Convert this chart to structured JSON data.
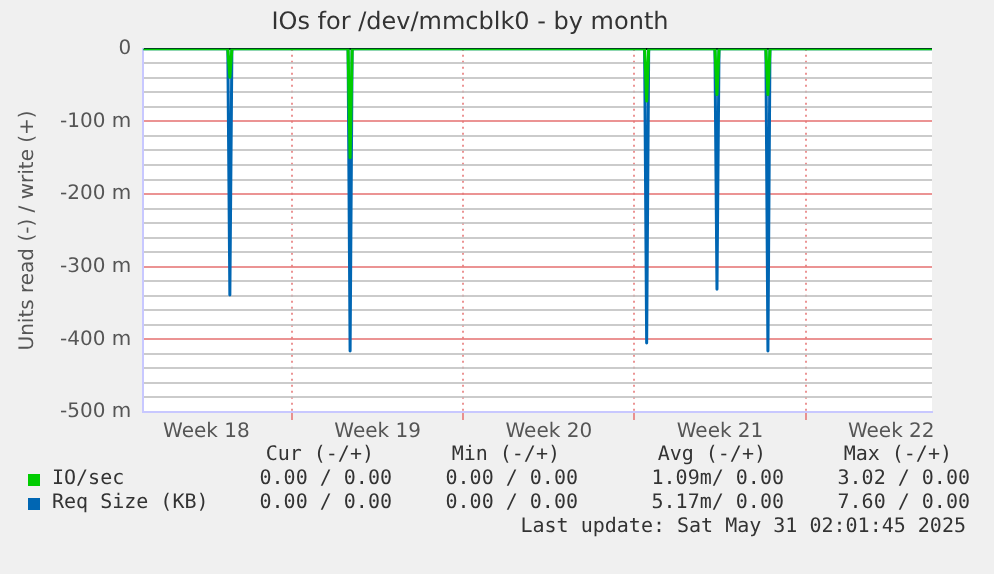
{
  "chart_data": {
    "type": "line",
    "title": "IOs for /dev/mmcblk0 - by month",
    "ylabel": "Units read (-) / write (+)",
    "x": [
      "2025-04-28T22:00",
      "2025-05-02T09:00",
      "2025-05-02T11:00",
      "2025-05-02T13:00",
      "2025-05-07T07:00",
      "2025-05-07T09:00",
      "2025-05-07T11:00",
      "2025-05-19T10:00",
      "2025-05-19T12:00",
      "2025-05-19T14:00",
      "2025-05-22T07:00",
      "2025-05-22T09:00",
      "2025-05-22T11:00",
      "2025-05-24T09:00",
      "2025-05-24T11:00",
      "2025-05-24T13:00",
      "2025-05-31T04:00"
    ],
    "series": [
      {
        "name": "IO/sec",
        "color": "#00cc00",
        "values": [
          0,
          0,
          -39,
          0,
          0,
          -150,
          0,
          0,
          -72,
          0,
          0,
          -63,
          0,
          0,
          -63,
          0,
          0
        ]
      },
      {
        "name": "Req Size (KB)",
        "color": "#0066b3",
        "values": [
          0,
          0,
          -339,
          0,
          0,
          -416,
          0,
          0,
          -405,
          0,
          0,
          -331,
          0,
          0,
          -416,
          0,
          0
        ]
      }
    ],
    "xlim": [
      "2025-04-28T22:00",
      "2025-05-31T04:00"
    ],
    "xticks": [
      {
        "value": "2025-05-01T12:00",
        "label": "Week 18"
      },
      {
        "value": "2025-05-05",
        "label": null
      },
      {
        "value": "2025-05-08T12:00",
        "label": "Week 19"
      },
      {
        "value": "2025-05-12",
        "label": null
      },
      {
        "value": "2025-05-15T12:00",
        "label": "Week 20"
      },
      {
        "value": "2025-05-19",
        "label": null
      },
      {
        "value": "2025-05-22T12:00",
        "label": "Week 21"
      },
      {
        "value": "2025-05-26",
        "label": null
      },
      {
        "value": "2025-05-29T12:00",
        "label": "Week 22"
      }
    ],
    "ylim": [
      -500,
      0
    ],
    "yticks": [
      {
        "value": -500,
        "label": "-500 m"
      },
      {
        "value": -480,
        "label": null
      },
      {
        "value": -460,
        "label": null
      },
      {
        "value": -440,
        "label": null
      },
      {
        "value": -420,
        "label": null
      },
      {
        "value": -400,
        "label": "-400 m"
      },
      {
        "value": -380,
        "label": null
      },
      {
        "value": -360,
        "label": null
      },
      {
        "value": -340,
        "label": null
      },
      {
        "value": -320,
        "label": null
      },
      {
        "value": -300,
        "label": "-300 m"
      },
      {
        "value": -280,
        "label": null
      },
      {
        "value": -260,
        "label": null
      },
      {
        "value": -240,
        "label": null
      },
      {
        "value": -220,
        "label": null
      },
      {
        "value": -200,
        "label": "-200 m"
      },
      {
        "value": -180,
        "label": null
      },
      {
        "value": -160,
        "label": null
      },
      {
        "value": -140,
        "label": null
      },
      {
        "value": -120,
        "label": null
      },
      {
        "value": -100,
        "label": "-100 m"
      },
      {
        "value": -80,
        "label": null
      },
      {
        "value": -60,
        "label": null
      },
      {
        "value": -40,
        "label": null
      },
      {
        "value": -20,
        "label": null
      },
      0
    ],
    "grid": true,
    "legend": "bottom left",
    "marker": "none",
    "line_style": "solid",
    "annotations": [
      "Cur (-/+)",
      "Min (-/+)",
      "Avg (-/+)",
      "Max (-/+)",
      "0.00 / 0.00",
      "0.00 / 0.00",
      "1.09m/ 0.00",
      "3.02 / 0.00",
      "0.00 / 0.00",
      "0.00 / 0.00",
      "5.17m/ 0.00",
      "7.60 / 0.00",
      "Last update: Sat May 31 02:01:45 2025"
    ]
  }
}
